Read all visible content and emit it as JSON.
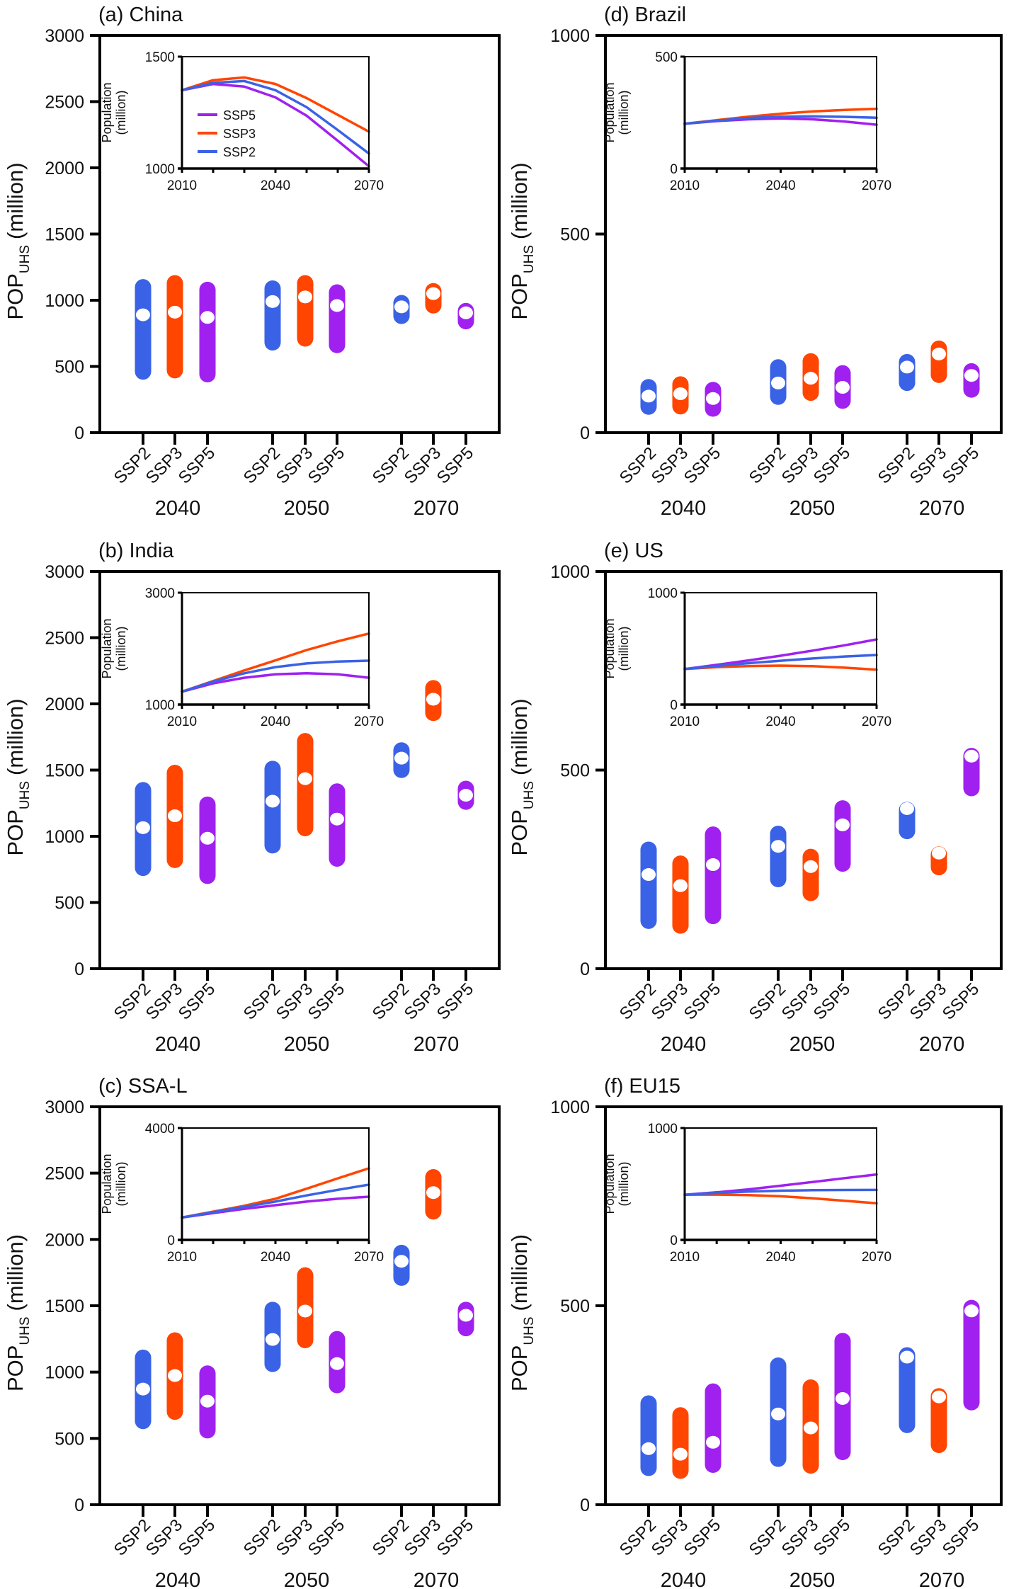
{
  "figure": {
    "colors": {
      "SSP2": "#3a62e6",
      "SSP3": "#ff4500",
      "SSP5": "#a020f0",
      "median_dot": "#ffffff",
      "axis": "#000000"
    },
    "scenarios": [
      "SSP2",
      "SSP3",
      "SSP5"
    ],
    "years": [
      "2040",
      "2050",
      "2070"
    ],
    "main_ylabel": {
      "main": "POP",
      "sub": "UHS",
      "unit": "(million)"
    },
    "inset_ylabel": {
      "line1": "Population",
      "line2": "(million)"
    },
    "legend": [
      {
        "name": "SSP5",
        "color": "#a020f0"
      },
      {
        "name": "SSP3",
        "color": "#ff4500"
      },
      {
        "name": "SSP2",
        "color": "#3a62e6"
      }
    ]
  },
  "chart_data": [
    {
      "id": "a",
      "title": "(a) China",
      "type": "range-bar",
      "ylabel": "POP_UHS (million)",
      "ylim": [
        0,
        3000
      ],
      "yticks": [
        0,
        500,
        1000,
        1500,
        2000,
        2500,
        3000
      ],
      "groups": [
        {
          "year": "2040",
          "bars": [
            {
              "scenario": "SSP2",
              "low": 400,
              "high": 1160,
              "median": 890
            },
            {
              "scenario": "SSP3",
              "low": 410,
              "high": 1190,
              "median": 910
            },
            {
              "scenario": "SSP5",
              "low": 380,
              "high": 1140,
              "median": 870
            }
          ]
        },
        {
          "year": "2050",
          "bars": [
            {
              "scenario": "SSP2",
              "low": 620,
              "high": 1150,
              "median": 990
            },
            {
              "scenario": "SSP3",
              "low": 650,
              "high": 1190,
              "median": 1025
            },
            {
              "scenario": "SSP5",
              "low": 600,
              "high": 1120,
              "median": 960
            }
          ]
        },
        {
          "year": "2070",
          "bars": [
            {
              "scenario": "SSP2",
              "low": 820,
              "high": 1040,
              "median": 950
            },
            {
              "scenario": "SSP3",
              "low": 900,
              "high": 1130,
              "median": 1050
            },
            {
              "scenario": "SSP5",
              "low": 780,
              "high": 980,
              "median": 905
            }
          ]
        }
      ],
      "inset": {
        "type": "line",
        "ylabel": "Population (million)",
        "ylim": [
          1000,
          1500
        ],
        "yticks": [
          1000,
          1500
        ],
        "xlim": [
          2010,
          2070
        ],
        "xticks": [
          2010,
          2040,
          2070
        ],
        "show_legend": true,
        "x": [
          2010,
          2020,
          2030,
          2040,
          2050,
          2060,
          2070
        ],
        "series": [
          {
            "name": "SSP5",
            "values": [
              1350,
              1378,
              1366,
              1318,
              1236,
              1124,
              1010
            ]
          },
          {
            "name": "SSP3",
            "values": [
              1350,
              1395,
              1407,
              1378,
              1315,
              1240,
              1165
            ]
          },
          {
            "name": "SSP2",
            "values": [
              1350,
              1383,
              1391,
              1350,
              1274,
              1172,
              1067
            ]
          }
        ]
      }
    },
    {
      "id": "d",
      "title": "(d) Brazil",
      "type": "range-bar",
      "ylabel": "POP_UHS (million)",
      "ylim": [
        0,
        1000
      ],
      "yticks": [
        0,
        500,
        1000
      ],
      "groups": [
        {
          "year": "2040",
          "bars": [
            {
              "scenario": "SSP2",
              "low": 45,
              "high": 135,
              "median": 92
            },
            {
              "scenario": "SSP3",
              "low": 46,
              "high": 142,
              "median": 98
            },
            {
              "scenario": "SSP5",
              "low": 40,
              "high": 128,
              "median": 86
            }
          ]
        },
        {
          "year": "2050",
          "bars": [
            {
              "scenario": "SSP2",
              "low": 70,
              "high": 185,
              "median": 125
            },
            {
              "scenario": "SSP3",
              "low": 80,
              "high": 200,
              "median": 137
            },
            {
              "scenario": "SSP5",
              "low": 60,
              "high": 170,
              "median": 114
            }
          ]
        },
        {
          "year": "2070",
          "bars": [
            {
              "scenario": "SSP2",
              "low": 105,
              "high": 198,
              "median": 165
            },
            {
              "scenario": "SSP3",
              "low": 125,
              "high": 232,
              "median": 198
            },
            {
              "scenario": "SSP5",
              "low": 88,
              "high": 175,
              "median": 144
            }
          ]
        }
      ],
      "inset": {
        "type": "line",
        "ylabel": "Population (million)",
        "ylim": [
          0,
          500
        ],
        "yticks": [
          0,
          500
        ],
        "xlim": [
          2010,
          2070
        ],
        "xticks": [
          2010,
          2040,
          2070
        ],
        "show_legend": false,
        "x": [
          2010,
          2020,
          2030,
          2040,
          2050,
          2060,
          2070
        ],
        "series": [
          {
            "name": "SSP5",
            "values": [
              200,
              212,
              220,
              224,
              220,
              210,
              196
            ]
          },
          {
            "name": "SSP3",
            "values": [
              200,
              216,
              232,
              245,
              255,
              262,
              267
            ]
          },
          {
            "name": "SSP2",
            "values": [
              200,
              214,
              226,
              232,
              233,
              231,
              227
            ]
          }
        ]
      }
    },
    {
      "id": "b",
      "title": "(b) India",
      "type": "range-bar",
      "ylabel": "POP_UHS (million)",
      "ylim": [
        0,
        3000
      ],
      "yticks": [
        0,
        500,
        1000,
        1500,
        2000,
        2500,
        3000
      ],
      "groups": [
        {
          "year": "2040",
          "bars": [
            {
              "scenario": "SSP2",
              "low": 700,
              "high": 1410,
              "median": 1065
            },
            {
              "scenario": "SSP3",
              "low": 760,
              "high": 1540,
              "median": 1155
            },
            {
              "scenario": "SSP5",
              "low": 640,
              "high": 1300,
              "median": 985
            }
          ]
        },
        {
          "year": "2050",
          "bars": [
            {
              "scenario": "SSP2",
              "low": 870,
              "high": 1570,
              "median": 1265
            },
            {
              "scenario": "SSP3",
              "low": 1000,
              "high": 1780,
              "median": 1435
            },
            {
              "scenario": "SSP5",
              "low": 770,
              "high": 1400,
              "median": 1130
            }
          ]
        },
        {
          "year": "2070",
          "bars": [
            {
              "scenario": "SSP2",
              "low": 1440,
              "high": 1710,
              "median": 1590
            },
            {
              "scenario": "SSP3",
              "low": 1870,
              "high": 2180,
              "median": 2035
            },
            {
              "scenario": "SSP5",
              "low": 1200,
              "high": 1420,
              "median": 1310
            }
          ]
        }
      ],
      "inset": {
        "type": "line",
        "ylabel": "Population (million)",
        "ylim": [
          1000,
          3000
        ],
        "yticks": [
          1000,
          3000
        ],
        "xlim": [
          2010,
          2070
        ],
        "xticks": [
          2010,
          2040,
          2070
        ],
        "show_legend": false,
        "x": [
          2010,
          2020,
          2030,
          2040,
          2050,
          2060,
          2070
        ],
        "series": [
          {
            "name": "SSP5",
            "values": [
              1230,
              1380,
              1480,
              1540,
              1560,
              1540,
              1480
            ]
          },
          {
            "name": "SSP3",
            "values": [
              1230,
              1420,
              1610,
              1790,
              1975,
              2130,
              2270
            ]
          },
          {
            "name": "SSP2",
            "values": [
              1230,
              1410,
              1560,
              1670,
              1735,
              1770,
              1785
            ]
          }
        ]
      }
    },
    {
      "id": "e",
      "title": "(e) US",
      "type": "range-bar",
      "ylabel": "POP_UHS (million)",
      "ylim": [
        0,
        1000
      ],
      "yticks": [
        0,
        500,
        1000
      ],
      "groups": [
        {
          "year": "2040",
          "bars": [
            {
              "scenario": "SSP2",
              "low": 100,
              "high": 320,
              "median": 237
            },
            {
              "scenario": "SSP3",
              "low": 88,
              "high": 285,
              "median": 209
            },
            {
              "scenario": "SSP5",
              "low": 112,
              "high": 358,
              "median": 262
            }
          ]
        },
        {
          "year": "2050",
          "bars": [
            {
              "scenario": "SSP2",
              "low": 205,
              "high": 360,
              "median": 308
            },
            {
              "scenario": "SSP3",
              "low": 170,
              "high": 302,
              "median": 257
            },
            {
              "scenario": "SSP5",
              "low": 244,
              "high": 424,
              "median": 362
            }
          ]
        },
        {
          "year": "2070",
          "bars": [
            {
              "scenario": "SSP2",
              "low": 326,
              "high": 420,
              "median": 403
            },
            {
              "scenario": "SSP3",
              "low": 235,
              "high": 308,
              "median": 291
            },
            {
              "scenario": "SSP5",
              "low": 434,
              "high": 556,
              "median": 535
            }
          ]
        }
      ],
      "inset": {
        "type": "line",
        "ylabel": "Population (million)",
        "ylim": [
          0,
          1000
        ],
        "yticks": [
          0,
          1000
        ],
        "xlim": [
          2010,
          2070
        ],
        "xticks": [
          2010,
          2040,
          2070
        ],
        "show_legend": false,
        "x": [
          2010,
          2020,
          2030,
          2040,
          2050,
          2060,
          2070
        ],
        "series": [
          {
            "name": "SSP5",
            "values": [
              318,
              355,
              395,
              437,
              482,
              530,
              582
            ]
          },
          {
            "name": "SSP3",
            "values": [
              318,
              335,
              344,
              348,
              343,
              330,
              312
            ]
          },
          {
            "name": "SSP2",
            "values": [
              318,
              345,
              370,
              392,
              412,
              430,
              443
            ]
          }
        ]
      }
    },
    {
      "id": "c",
      "title": "(c) SSA-L",
      "type": "range-bar",
      "ylabel": "POP_UHS (million)",
      "ylim": [
        0,
        3000
      ],
      "yticks": [
        0,
        500,
        1000,
        1500,
        2000,
        2500,
        3000
      ],
      "groups": [
        {
          "year": "2040",
          "bars": [
            {
              "scenario": "SSP2",
              "low": 570,
              "high": 1170,
              "median": 872
            },
            {
              "scenario": "SSP3",
              "low": 640,
              "high": 1300,
              "median": 974
            },
            {
              "scenario": "SSP5",
              "low": 500,
              "high": 1050,
              "median": 781
            }
          ]
        },
        {
          "year": "2050",
          "bars": [
            {
              "scenario": "SSP2",
              "low": 1000,
              "high": 1530,
              "median": 1246
            },
            {
              "scenario": "SSP3",
              "low": 1180,
              "high": 1790,
              "median": 1460
            },
            {
              "scenario": "SSP5",
              "low": 840,
              "high": 1310,
              "median": 1064
            }
          ]
        },
        {
          "year": "2070",
          "bars": [
            {
              "scenario": "SSP2",
              "low": 1650,
              "high": 1960,
              "median": 1835
            },
            {
              "scenario": "SSP3",
              "low": 2150,
              "high": 2530,
              "median": 2353
            },
            {
              "scenario": "SSP5",
              "low": 1270,
              "high": 1530,
              "median": 1428
            }
          ]
        }
      ],
      "inset": {
        "type": "line",
        "ylabel": "Population (million)",
        "ylim": [
          0,
          4000
        ],
        "yticks": [
          0,
          4000
        ],
        "xlim": [
          2010,
          2070
        ],
        "xticks": [
          2010,
          2040,
          2070
        ],
        "show_legend": false,
        "x": [
          2010,
          2020,
          2030,
          2040,
          2050,
          2060,
          2070
        ],
        "series": [
          {
            "name": "SSP5",
            "values": [
              800,
              960,
              1110,
              1240,
              1370,
              1470,
              1544
            ]
          },
          {
            "name": "SSP3",
            "values": [
              800,
              1010,
              1220,
              1470,
              1830,
              2200,
              2560
            ]
          },
          {
            "name": "SSP2",
            "values": [
              800,
              990,
              1180,
              1370,
              1590,
              1790,
              1975
            ]
          }
        ]
      }
    },
    {
      "id": "f",
      "title": "(f) EU15",
      "type": "range-bar",
      "ylabel": "POP_UHS (million)",
      "ylim": [
        0,
        1000
      ],
      "yticks": [
        0,
        500,
        1000
      ],
      "groups": [
        {
          "year": "2040",
          "bars": [
            {
              "scenario": "SSP2",
              "low": 72,
              "high": 275,
              "median": 141
            },
            {
              "scenario": "SSP3",
              "low": 65,
              "high": 245,
              "median": 127
            },
            {
              "scenario": "SSP5",
              "low": 80,
              "high": 305,
              "median": 157
            }
          ]
        },
        {
          "year": "2050",
          "bars": [
            {
              "scenario": "SSP2",
              "low": 95,
              "high": 370,
              "median": 228
            },
            {
              "scenario": "SSP3",
              "low": 78,
              "high": 315,
              "median": 193
            },
            {
              "scenario": "SSP5",
              "low": 112,
              "high": 432,
              "median": 267
            }
          ]
        },
        {
          "year": "2070",
          "bars": [
            {
              "scenario": "SSP2",
              "low": 180,
              "high": 396,
              "median": 371
            },
            {
              "scenario": "SSP3",
              "low": 130,
              "high": 293,
              "median": 271
            },
            {
              "scenario": "SSP5",
              "low": 237,
              "high": 515,
              "median": 487
            }
          ]
        }
      ],
      "inset": {
        "type": "line",
        "ylabel": "Population (million)",
        "ylim": [
          0,
          1000
        ],
        "yticks": [
          0,
          1000
        ],
        "xlim": [
          2010,
          2070
        ],
        "xticks": [
          2010,
          2040,
          2070
        ],
        "show_legend": false,
        "x": [
          2010,
          2020,
          2030,
          2040,
          2050,
          2060,
          2070
        ],
        "series": [
          {
            "name": "SSP5",
            "values": [
              403,
              425,
              452,
              484,
              518,
              552,
              585
            ]
          },
          {
            "name": "SSP3",
            "values": [
              403,
              405,
              400,
              390,
              372,
              350,
              327
            ]
          },
          {
            "name": "SSP2",
            "values": [
              403,
              420,
              432,
              440,
              444,
              446,
              447
            ]
          }
        ]
      }
    }
  ]
}
